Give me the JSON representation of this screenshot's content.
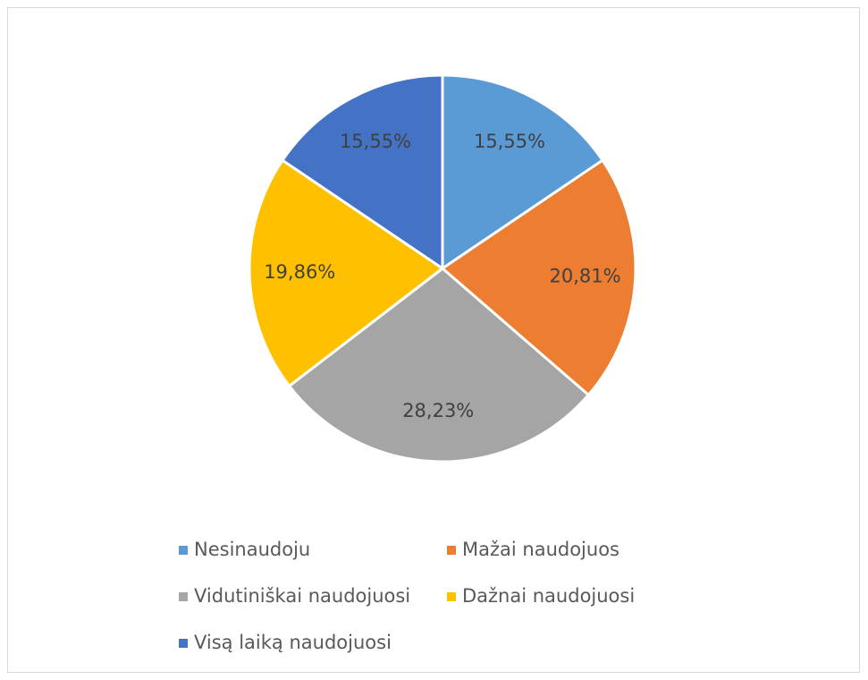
{
  "chart_data": {
    "type": "pie",
    "categories": [
      "Nesinaudoju",
      "Mažai naudojuos",
      "Vidutiniškai naudojuosi",
      "Dažnai naudojuosi",
      "Visą laiką naudojuosi"
    ],
    "values": [
      15.55,
      20.81,
      28.23,
      19.86,
      15.55
    ],
    "value_labels": [
      "15,55%",
      "20,81%",
      "28,23%",
      "19,86%",
      "15,55%"
    ],
    "colors": [
      "#5b9bd5",
      "#ed7d31",
      "#a5a5a5",
      "#ffc000",
      "#4472c4"
    ],
    "legend": "bottom"
  }
}
